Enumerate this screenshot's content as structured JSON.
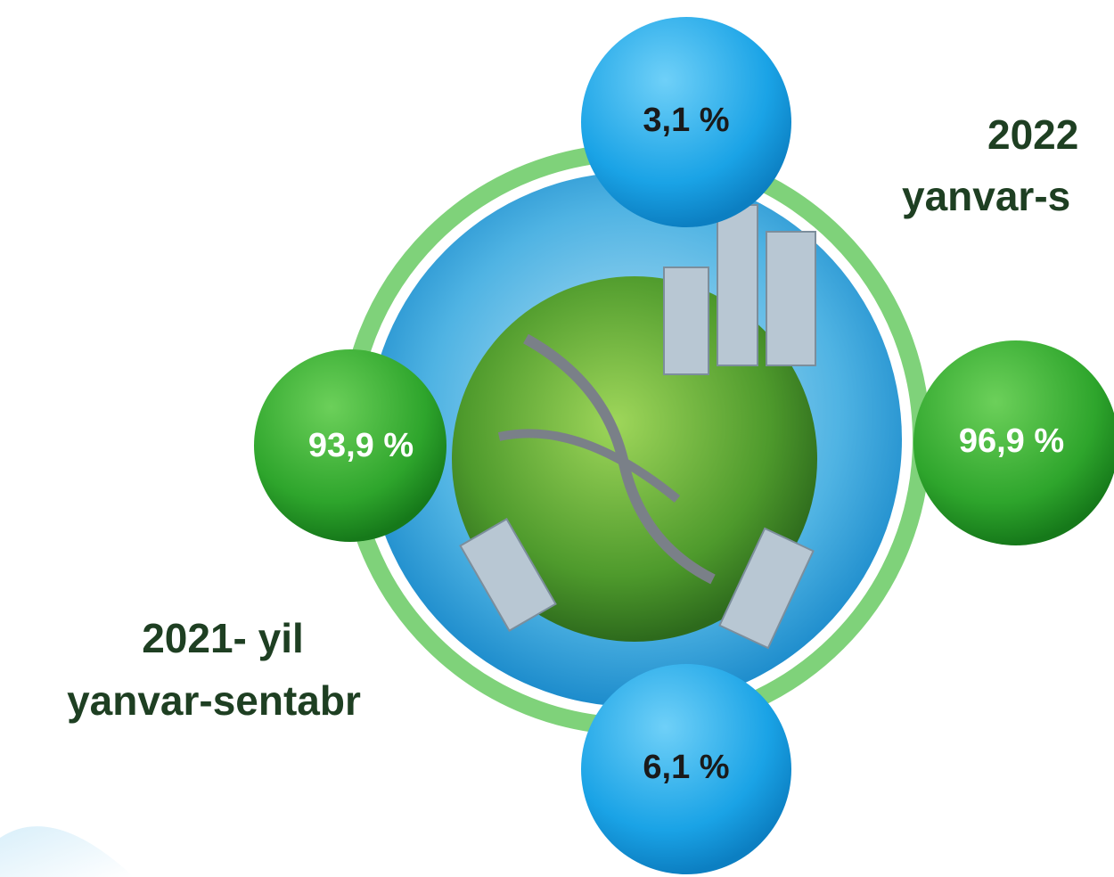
{
  "left_label": {
    "line1": "2021-  yil",
    "line2": "yanvar-sentabr"
  },
  "right_label": {
    "line1": "2022",
    "line2": "yanvar-s"
  },
  "bubbles": {
    "top": "3,1 %",
    "left": "93,9 %",
    "right": "96,9 %",
    "bottom": "6,1 %"
  }
}
